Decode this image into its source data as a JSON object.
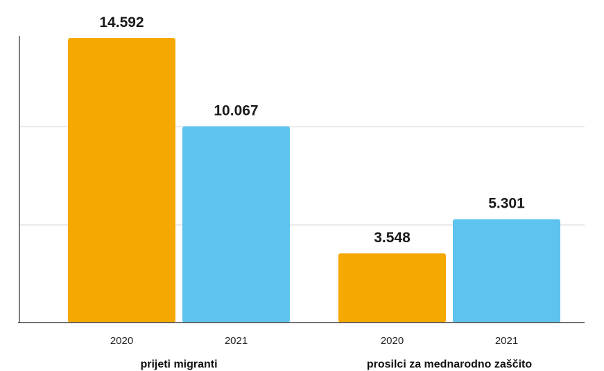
{
  "chart_data": {
    "type": "bar",
    "title": "",
    "xlabel": "",
    "ylabel": "",
    "ylim": [
      0,
      14592
    ],
    "grid": true,
    "legend": "none",
    "groups": [
      {
        "label": "prijeti migranti",
        "bars": [
          {
            "category": "2020",
            "value": 14592,
            "display": "14.592",
            "color": "#f5a800"
          },
          {
            "category": "2021",
            "value": 10067,
            "display": "10.067",
            "color": "#5ec3ee"
          }
        ]
      },
      {
        "label": "prosilci za mednarodno zaščito",
        "bars": [
          {
            "category": "2020",
            "value": 3548,
            "display": "3.548",
            "color": "#f5a800"
          },
          {
            "category": "2021",
            "value": 5301,
            "display": "5.301",
            "color": "#5ec3ee"
          }
        ]
      }
    ]
  }
}
